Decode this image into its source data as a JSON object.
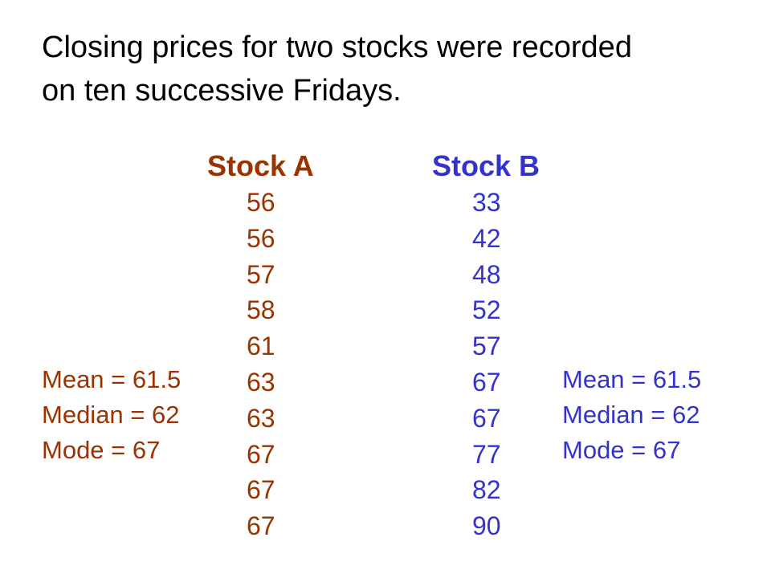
{
  "heading": {
    "line1": "Closing prices for two stocks were recorded",
    "line2": "on ten successive Fridays."
  },
  "colors": {
    "text": "#000000",
    "stock_a": "#993300",
    "stock_b": "#3333cc"
  },
  "stock_a": {
    "title": "Stock A",
    "prices": [
      "56",
      "56",
      "57",
      "58",
      "61",
      "63",
      "63",
      "67",
      "67",
      "67"
    ],
    "stats": {
      "mean": "Mean = 61.5",
      "median": "Median = 62",
      "mode": "Mode = 67"
    }
  },
  "stock_b": {
    "title": "Stock B",
    "prices": [
      "33",
      "42",
      "48",
      "52",
      "57",
      "67",
      "67",
      "77",
      "82",
      "90"
    ],
    "stats": {
      "mean": "Mean = 61.5",
      "median": "Median = 62",
      "mode": "Mode = 67"
    }
  }
}
